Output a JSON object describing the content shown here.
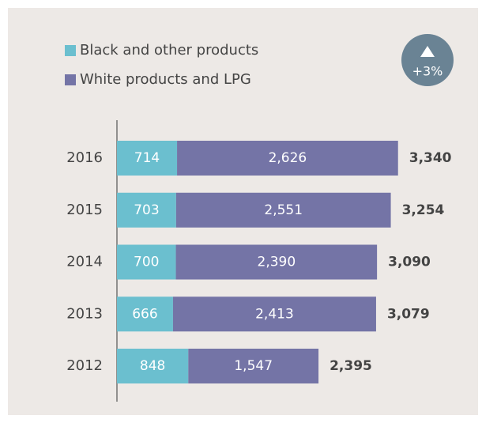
{
  "chart_data": {
    "type": "stacked-bar-horizontal",
    "categories": [
      "2016",
      "2015",
      "2014",
      "2013",
      "2012"
    ],
    "series": [
      {
        "name": "Black and other products",
        "color": "#6bbfcf",
        "values": [
          714,
          703,
          700,
          666,
          848
        ],
        "value_labels": [
          "714",
          "703",
          "700",
          "666",
          "848"
        ]
      },
      {
        "name": "White products and LPG",
        "color": "#7474a6",
        "values": [
          2626,
          2551,
          2390,
          2413,
          1547
        ],
        "value_labels": [
          "2,626",
          "2,551",
          "2,390",
          "2,413",
          "1,547"
        ]
      }
    ],
    "totals": [
      3340,
      3254,
      3090,
      3079,
      2395
    ],
    "total_labels": [
      "3,340",
      "3,254",
      "3,090",
      "3,079",
      "2,395"
    ],
    "annotation": "+3%",
    "xlim": [
      0,
      4300
    ]
  }
}
